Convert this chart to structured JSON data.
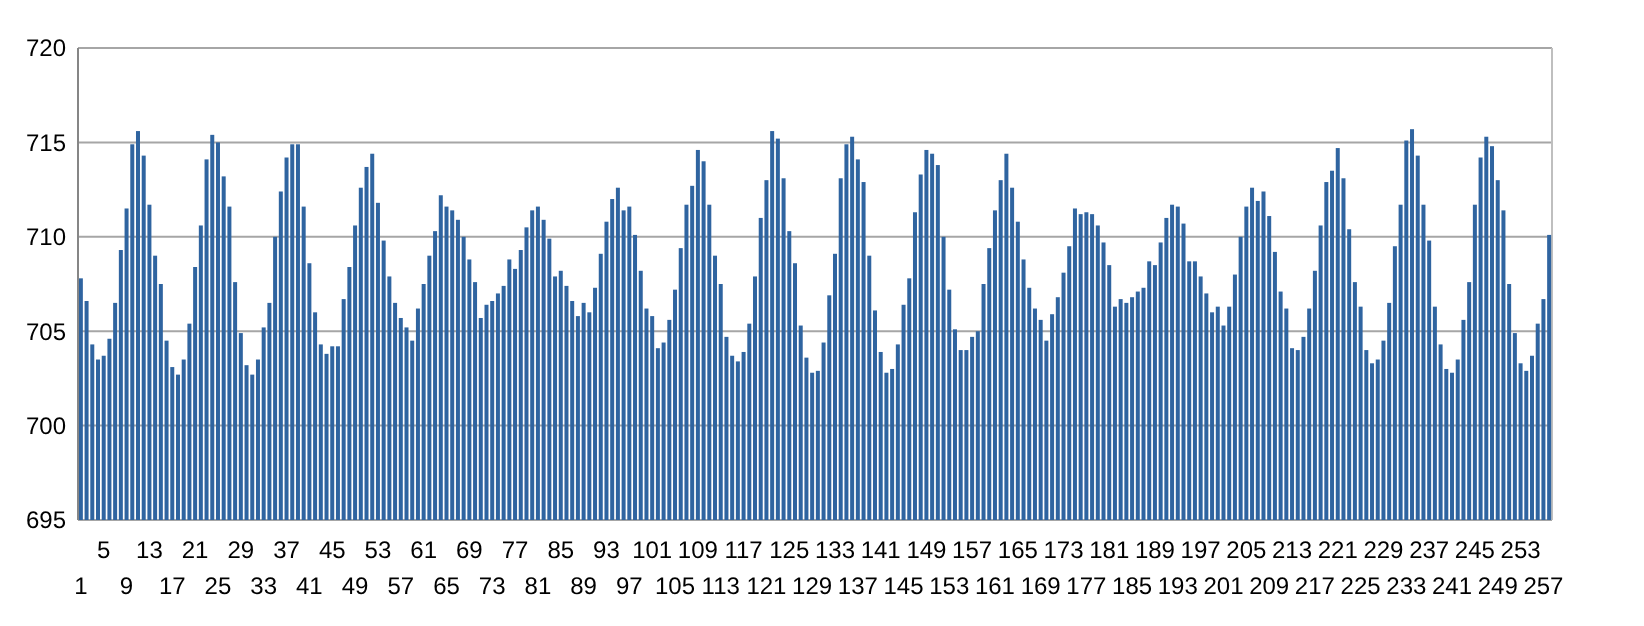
{
  "chart_data": {
    "type": "bar",
    "categories": [
      "1",
      null,
      null,
      null,
      "5",
      null,
      null,
      null,
      "9",
      null,
      null,
      null,
      "13",
      null,
      null,
      null,
      "17",
      null,
      null,
      null,
      "21",
      null,
      null,
      null,
      "25",
      null,
      null,
      null,
      "29",
      null,
      null,
      null,
      "33",
      null,
      null,
      null,
      "37",
      null,
      null,
      null,
      "41",
      null,
      null,
      null,
      "45",
      null,
      null,
      null,
      "49",
      null,
      null,
      null,
      "53",
      null,
      null,
      null,
      "57",
      null,
      null,
      null,
      "61",
      null,
      null,
      null,
      "65",
      null,
      null,
      null,
      "69",
      null,
      null,
      null,
      "73",
      null,
      null,
      null,
      "77",
      null,
      null,
      null,
      "81",
      null,
      null,
      null,
      "85",
      null,
      null,
      null,
      "89",
      null,
      null,
      null,
      "93",
      null,
      null,
      null,
      "97",
      null,
      null,
      null,
      "101",
      null,
      null,
      null,
      "105",
      null,
      null,
      null,
      "109",
      null,
      null,
      null,
      "113",
      null,
      null,
      null,
      "117",
      null,
      null,
      null,
      "121",
      null,
      null,
      null,
      "125",
      null,
      null,
      null,
      "129",
      null,
      null,
      null,
      "133",
      null,
      null,
      null,
      "137",
      null,
      null,
      null,
      "141",
      null,
      null,
      null,
      "145",
      null,
      null,
      null,
      "149",
      null,
      null,
      null,
      "153",
      null,
      null,
      null,
      "157",
      null,
      null,
      null,
      "161",
      null,
      null,
      null,
      "165",
      null,
      null,
      null,
      "169",
      null,
      null,
      null,
      "173",
      null,
      null,
      null,
      "177",
      null,
      null,
      null,
      "181",
      null,
      null,
      null,
      "185",
      null,
      null,
      null,
      "189",
      null,
      null,
      null,
      "193",
      null,
      null,
      null,
      "197",
      null,
      null,
      null,
      "201",
      null,
      null,
      null,
      "205",
      null,
      null,
      null,
      "209",
      null,
      null,
      null,
      "213",
      null,
      null,
      null,
      "217",
      null,
      null,
      null,
      "221",
      null,
      null,
      null,
      "225",
      null,
      null,
      null,
      "229",
      null,
      null,
      null,
      "233",
      null,
      null,
      null,
      "237",
      null,
      null,
      null,
      "241",
      null,
      null,
      null,
      "245",
      null,
      null,
      null,
      "249",
      null,
      null,
      null,
      "253",
      null,
      null,
      null,
      "257",
      null
    ],
    "values": [
      707.8,
      706.6,
      704.3,
      703.5,
      703.7,
      704.6,
      706.5,
      709.3,
      711.5,
      714.9,
      715.6,
      714.3,
      711.7,
      709.0,
      707.5,
      704.5,
      703.1,
      702.7,
      703.5,
      705.4,
      708.4,
      710.6,
      714.1,
      715.4,
      715.0,
      713.2,
      711.6,
      707.6,
      704.9,
      703.2,
      702.7,
      703.5,
      705.2,
      706.5,
      710.0,
      712.4,
      714.2,
      714.9,
      714.9,
      711.6,
      708.6,
      706.0,
      704.3,
      703.8,
      704.2,
      704.2,
      706.7,
      708.4,
      710.6,
      712.6,
      713.7,
      714.4,
      711.8,
      709.8,
      707.9,
      706.5,
      705.7,
      705.2,
      704.5,
      706.2,
      707.5,
      709.0,
      710.3,
      712.2,
      711.6,
      711.4,
      710.9,
      710.0,
      708.8,
      707.6,
      705.7,
      706.4,
      706.6,
      707.0,
      707.4,
      708.8,
      708.3,
      709.3,
      710.5,
      711.4,
      711.6,
      710.9,
      709.9,
      707.9,
      708.2,
      707.4,
      706.6,
      705.8,
      706.5,
      706.0,
      707.3,
      709.1,
      710.8,
      712.0,
      712.6,
      711.4,
      711.6,
      710.1,
      708.2,
      706.2,
      705.8,
      704.1,
      704.4,
      705.6,
      707.2,
      709.4,
      711.7,
      712.7,
      714.6,
      714.0,
      711.7,
      709.0,
      707.5,
      704.7,
      703.7,
      703.4,
      703.9,
      705.4,
      707.9,
      711.0,
      713.0,
      715.6,
      715.2,
      713.1,
      710.3,
      708.6,
      705.3,
      703.6,
      702.8,
      702.9,
      704.4,
      706.9,
      709.1,
      713.1,
      714.9,
      715.3,
      714.1,
      712.9,
      709.0,
      706.1,
      703.9,
      702.8,
      703.0,
      704.3,
      706.4,
      707.8,
      711.3,
      713.3,
      714.6,
      714.4,
      713.8,
      710.0,
      707.2,
      705.1,
      704.0,
      704.0,
      704.7,
      705.0,
      707.5,
      709.4,
      711.4,
      713.0,
      714.4,
      712.6,
      710.8,
      708.8,
      707.3,
      706.2,
      705.6,
      704.5,
      705.9,
      706.8,
      708.1,
      709.5,
      711.5,
      711.2,
      711.3,
      711.2,
      710.6,
      709.7,
      708.5,
      706.3,
      706.7,
      706.5,
      706.8,
      707.1,
      707.3,
      708.7,
      708.5,
      709.7,
      711.0,
      711.7,
      711.6,
      710.7,
      708.7,
      708.7,
      707.9,
      707.0,
      706.0,
      706.3,
      705.3,
      706.3,
      708.0,
      710.0,
      711.6,
      712.6,
      711.9,
      712.4,
      711.1,
      709.2,
      707.1,
      706.2,
      704.1,
      704.0,
      704.7,
      706.2,
      708.2,
      710.6,
      712.9,
      713.5,
      714.7,
      713.1,
      710.4,
      707.6,
      706.3,
      704.0,
      703.3,
      703.5,
      704.5,
      706.5,
      709.5,
      711.7,
      715.1,
      715.7,
      714.3,
      711.7,
      709.8,
      706.3,
      704.3,
      703.0,
      702.8,
      703.5,
      705.6,
      707.6,
      711.7,
      714.2,
      715.3,
      714.8,
      713.0,
      711.4,
      707.5,
      704.9,
      703.3,
      702.9,
      703.7,
      705.4,
      706.7,
      710.1
    ],
    "color": "#2f64a0",
    "ylim": [
      695,
      720
    ],
    "yticks": [
      695,
      700,
      705,
      710,
      715,
      720
    ],
    "grid": "y"
  }
}
